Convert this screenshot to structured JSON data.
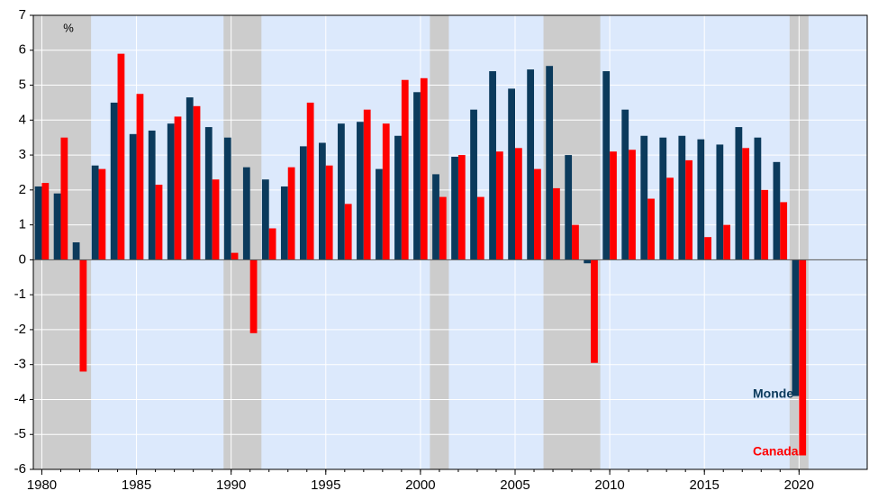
{
  "chart_data": {
    "type": "bar",
    "unit_label": "%",
    "x": [
      1980,
      1981,
      1982,
      1983,
      1984,
      1985,
      1986,
      1987,
      1988,
      1989,
      1990,
      1991,
      1992,
      1993,
      1994,
      1995,
      1996,
      1997,
      1998,
      1999,
      2000,
      2001,
      2002,
      2003,
      2004,
      2005,
      2006,
      2007,
      2008,
      2009,
      2010,
      2011,
      2012,
      2013,
      2014,
      2015,
      2016,
      2017,
      2018,
      2019,
      2020
    ],
    "series": [
      {
        "name": "Monde",
        "color": "#0b3a5c",
        "values": [
          2.1,
          1.9,
          0.5,
          2.7,
          4.5,
          3.6,
          3.7,
          3.9,
          4.65,
          3.8,
          3.5,
          2.65,
          2.3,
          2.1,
          3.25,
          3.35,
          3.9,
          3.95,
          2.6,
          3.55,
          4.8,
          2.45,
          2.95,
          4.3,
          5.4,
          4.9,
          5.45,
          5.55,
          3.0,
          -0.1,
          5.4,
          4.3,
          3.55,
          3.5,
          3.55,
          3.45,
          3.3,
          3.8,
          3.5,
          2.8,
          -3.9
        ]
      },
      {
        "name": "Canada",
        "color": "#ff0000",
        "values": [
          2.2,
          3.5,
          -3.2,
          2.6,
          5.9,
          4.75,
          2.15,
          4.1,
          4.4,
          2.3,
          0.2,
          -2.1,
          0.9,
          2.65,
          4.5,
          2.7,
          1.6,
          4.3,
          3.9,
          5.15,
          5.2,
          1.8,
          3.0,
          1.8,
          3.1,
          3.2,
          2.6,
          2.05,
          1.0,
          -2.95,
          3.1,
          3.15,
          1.75,
          2.35,
          2.85,
          0.65,
          1.0,
          3.2,
          2.0,
          1.65,
          -5.6
        ]
      }
    ],
    "shaded_periods": [
      [
        1979.55,
        1982.6
      ],
      [
        1989.6,
        1991.6
      ],
      [
        2000.5,
        2001.5
      ],
      [
        2006.5,
        2009.5
      ],
      [
        2019.5,
        2020.5
      ]
    ],
    "xlim": [
      1979.55,
      2023.6
    ],
    "xticks": [
      1980,
      1985,
      1990,
      1995,
      2000,
      2005,
      2010,
      2015,
      2020
    ],
    "ylim": [
      -6,
      7
    ],
    "yticks": [
      -6,
      -5,
      -4,
      -3,
      -2,
      -1,
      0,
      1,
      2,
      3,
      4,
      5,
      6,
      7
    ],
    "grid": true
  }
}
